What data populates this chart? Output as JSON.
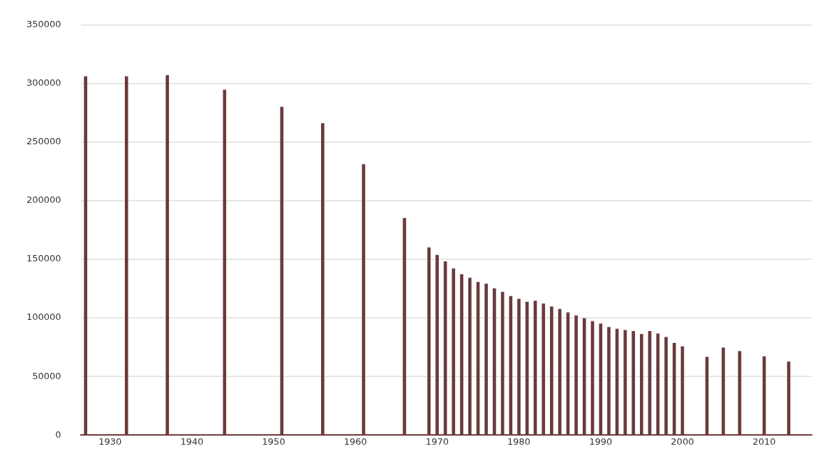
{
  "chart_data": {
    "type": "bar",
    "x": [
      1927,
      1932,
      1937,
      1944,
      1951,
      1956,
      1961,
      1966,
      1969,
      1970,
      1971,
      1972,
      1973,
      1974,
      1975,
      1976,
      1977,
      1978,
      1979,
      1980,
      1981,
      1982,
      1983,
      1984,
      1985,
      1986,
      1987,
      1988,
      1989,
      1990,
      1991,
      1992,
      1993,
      1994,
      1995,
      1996,
      1997,
      1998,
      1999,
      2000,
      2003,
      2005,
      2007,
      2010,
      2013
    ],
    "values": [
      306000,
      306000,
      307000,
      294500,
      280000,
      266000,
      231000,
      185000,
      160000,
      153500,
      148000,
      142000,
      137000,
      134000,
      130500,
      129000,
      125000,
      122000,
      118500,
      116000,
      113500,
      114500,
      112000,
      109500,
      107500,
      104500,
      102000,
      99500,
      97000,
      95000,
      92000,
      90500,
      89500,
      88500,
      86000,
      88500,
      86500,
      83500,
      78500,
      75500,
      66500,
      74500,
      71500,
      67000,
      62500
    ],
    "color": "#6b3a3a",
    "xlim": [
      1926.4,
      2015.8
    ],
    "xticks": [
      1930,
      1940,
      1950,
      1960,
      1970,
      1980,
      1990,
      2000,
      2010
    ],
    "ylim": [
      0,
      350000
    ],
    "yticks": [
      0,
      50000,
      100000,
      150000,
      200000,
      250000,
      300000,
      350000
    ],
    "grid": "y"
  }
}
